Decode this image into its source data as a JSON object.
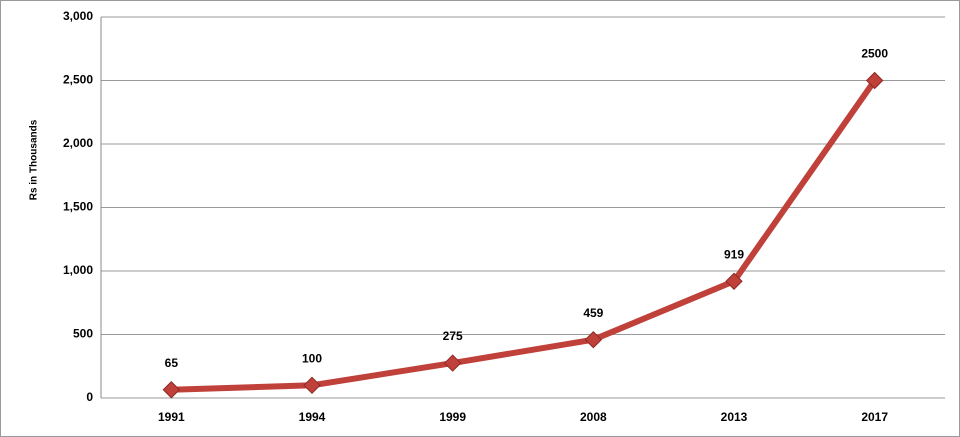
{
  "chart_data": {
    "type": "line",
    "y_label": "Rs in Thousands",
    "categories": [
      "1991",
      "1994",
      "1999",
      "2008",
      "2013",
      "2017"
    ],
    "series": [
      {
        "name": "Rs in Thousands",
        "color": "#c0403a",
        "values": [
          65,
          100,
          275,
          459,
          919,
          2500
        ]
      }
    ],
    "ylim": [
      0,
      3000
    ],
    "yticks": [
      0,
      500,
      {
        "value": 1000,
        "label": "1,000"
      },
      {
        "value": 1500,
        "label": "1,500"
      },
      {
        "value": 2000,
        "label": "2,000"
      },
      {
        "value": 2500,
        "label": "2,500"
      },
      {
        "value": 3000,
        "label": "3,000"
      }
    ],
    "grid": true,
    "data_labels": true
  }
}
